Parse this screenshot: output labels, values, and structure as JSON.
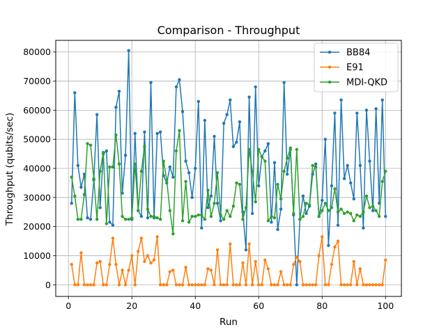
{
  "chart_data": {
    "type": "line",
    "title": "Comparison - Throughput",
    "xlabel": "Run",
    "ylabel": "Throughput (qubits/sec)",
    "xlim": [
      -4,
      105
    ],
    "ylim": [
      -4000,
      84000
    ],
    "xticks": [
      0,
      20,
      40,
      60,
      80,
      100
    ],
    "yticks": [
      0,
      10000,
      20000,
      30000,
      40000,
      50000,
      60000,
      70000,
      80000
    ],
    "grid": true,
    "legend_position": "top-right",
    "x": [
      1,
      2,
      3,
      4,
      5,
      6,
      7,
      8,
      9,
      10,
      11,
      12,
      13,
      14,
      15,
      16,
      17,
      18,
      19,
      20,
      21,
      22,
      23,
      24,
      25,
      26,
      27,
      28,
      29,
      30,
      31,
      32,
      33,
      34,
      35,
      36,
      37,
      38,
      39,
      40,
      41,
      42,
      43,
      44,
      45,
      46,
      47,
      48,
      49,
      50,
      51,
      52,
      53,
      54,
      55,
      56,
      57,
      58,
      59,
      60,
      61,
      62,
      63,
      64,
      65,
      66,
      67,
      68,
      69,
      70,
      71,
      72,
      73,
      74,
      75,
      76,
      77,
      78,
      79,
      80,
      81,
      82,
      83,
      84,
      85,
      86,
      87,
      88,
      89,
      90,
      91,
      92,
      93,
      94,
      95,
      96,
      97,
      98,
      99,
      100
    ],
    "series": [
      {
        "name": "BB84",
        "color": "#1f77b4",
        "values": [
          28000,
          66000,
          41000,
          33500,
          38000,
          23000,
          22500,
          36000,
          58500,
          26500,
          45000,
          46000,
          21500,
          20500,
          61000,
          66500,
          31500,
          44500,
          80500,
          22500,
          52000,
          25500,
          23500,
          52500,
          23000,
          69500,
          23000,
          52000,
          52500,
          37500,
          35000,
          40500,
          37000,
          68000,
          70500,
          59500,
          42500,
          38500,
          30000,
          40000,
          63000,
          19500,
          56500,
          26500,
          30500,
          51000,
          28000,
          22000,
          55500,
          58500,
          63500,
          47500,
          49000,
          56000,
          25000,
          12000,
          64500,
          24500,
          68000,
          34000,
          44000,
          46000,
          48500,
          21500,
          42000,
          19000,
          26000,
          69500,
          38000,
          46500,
          24000,
          0,
          22500,
          30500,
          24500,
          27000,
          38000,
          41500,
          23500,
          29000,
          50000,
          13500,
          34000,
          59000,
          20500,
          63500,
          36500,
          41000,
          35000,
          29500,
          59000,
          41000,
          19500,
          60000,
          42500,
          25500,
          60500,
          28000,
          63500,
          23500
        ]
      },
      {
        "name": "E91",
        "color": "#ff7f0e",
        "values": [
          7000,
          0,
          0,
          11000,
          0,
          0,
          0,
          0,
          7500,
          8000,
          0,
          0,
          7000,
          16000,
          7000,
          0,
          5000,
          0,
          5000,
          10000,
          0,
          11500,
          16000,
          8000,
          10000,
          7500,
          8500,
          16500,
          0,
          0,
          0,
          4500,
          5000,
          0,
          0,
          0,
          6000,
          0,
          0,
          0,
          0,
          0,
          0,
          5500,
          5000,
          0,
          12000,
          0,
          0,
          0,
          14000,
          0,
          0,
          0,
          7500,
          0,
          14000,
          0,
          8000,
          0,
          0,
          8500,
          5500,
          0,
          0,
          0,
          4500,
          0,
          0,
          0,
          7000,
          9500,
          8000,
          0,
          0,
          0,
          0,
          0,
          10000,
          16500,
          0,
          0,
          7000,
          13000,
          15000,
          0,
          0,
          0,
          0,
          8000,
          0,
          5500,
          0,
          0,
          0,
          0,
          0,
          0,
          0,
          8500
        ]
      },
      {
        "name": "MDI-QKD",
        "color": "#2ca02c",
        "values": [
          37000,
          30500,
          22500,
          22500,
          31000,
          48500,
          48000,
          36500,
          22500,
          39000,
          45500,
          21000,
          40500,
          40500,
          51500,
          41500,
          23500,
          22500,
          22500,
          23000,
          41500,
          25500,
          39000,
          47500,
          26000,
          23500,
          23500,
          23000,
          22500,
          42500,
          36000,
          25500,
          17500,
          46000,
          53000,
          22000,
          35500,
          21500,
          23500,
          23500,
          24000,
          24000,
          22500,
          32500,
          23500,
          28000,
          38500,
          24000,
          22500,
          25500,
          23500,
          27000,
          35000,
          34500,
          22500,
          26500,
          46500,
          39000,
          28500,
          46500,
          44000,
          42500,
          22000,
          23500,
          23000,
          34500,
          29500,
          39000,
          43500,
          47000,
          24500,
          46500,
          22500,
          23500,
          28000,
          27500,
          41000,
          40500,
          23500,
          25500,
          28000,
          25500,
          26500,
          33000,
          25000,
          26000,
          24500,
          25000,
          24500,
          22000,
          24000,
          23500,
          25000,
          30500,
          26500,
          27000,
          25500,
          23500,
          35500,
          39000
        ]
      }
    ]
  }
}
